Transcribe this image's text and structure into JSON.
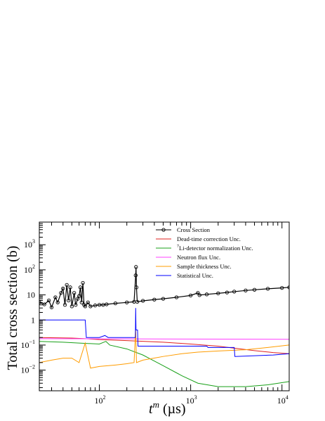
{
  "chart_data": {
    "type": "line",
    "xlabel_main": "t",
    "xlabel_sup": "m",
    "xlabel_unit": " (µs)",
    "ylabel": "Total cross section (b)",
    "x_scale": "log",
    "y_scale": "log",
    "xlim": [
      22,
      12000
    ],
    "ylim": [
      0.0015,
      8000
    ],
    "x_tick_labels": [
      {
        "value": 100,
        "base": "10",
        "exp": "2"
      },
      {
        "value": 1000,
        "base": "10",
        "exp": "3"
      },
      {
        "value": 10000,
        "base": "10",
        "exp": "4"
      }
    ],
    "y_tick_labels": [
      {
        "value": 0.01,
        "base": "10",
        "exp": "−2"
      },
      {
        "value": 0.1,
        "base": "10",
        "exp": "−1"
      },
      {
        "value": 1,
        "base": "1",
        "exp": ""
      },
      {
        "value": 10,
        "base": "10",
        "exp": ""
      },
      {
        "value": 100,
        "base": "10",
        "exp": "2"
      },
      {
        "value": 1000,
        "base": "10",
        "exp": "3"
      }
    ],
    "grid": false,
    "legend_position": "top-right",
    "series": [
      {
        "name": "Cross Section",
        "color": "#000000",
        "style": "markers",
        "points": [
          [
            22,
            5.0
          ],
          [
            25,
            4.2
          ],
          [
            28,
            6.0
          ],
          [
            30,
            3.2
          ],
          [
            33,
            8.0
          ],
          [
            35,
            5.0
          ],
          [
            38,
            12.0
          ],
          [
            40,
            18.0
          ],
          [
            42,
            4.0
          ],
          [
            44,
            25.0
          ],
          [
            46,
            6.0
          ],
          [
            48,
            20.0
          ],
          [
            50,
            3.5
          ],
          [
            53,
            12.0
          ],
          [
            55,
            4.0
          ],
          [
            58,
            7.0
          ],
          [
            60,
            9.0
          ],
          [
            62,
            20.0
          ],
          [
            64,
            5.0
          ],
          [
            66,
            30.0
          ],
          [
            68,
            4.0
          ],
          [
            70,
            3.5
          ],
          [
            75,
            5.0
          ],
          [
            80,
            3.5
          ],
          [
            90,
            3.8
          ],
          [
            100,
            4.0
          ],
          [
            110,
            4.0
          ],
          [
            120,
            4.2
          ],
          [
            150,
            4.6
          ],
          [
            200,
            5.0
          ],
          [
            240,
            5.3
          ],
          [
            250,
            60.0
          ],
          [
            252,
            130.0
          ],
          [
            255,
            20.0
          ],
          [
            260,
            5.3
          ],
          [
            300,
            5.8
          ],
          [
            400,
            6.5
          ],
          [
            500,
            7.0
          ],
          [
            700,
            8.0
          ],
          [
            1000,
            9.5
          ],
          [
            1200,
            12.0
          ],
          [
            1250,
            9.8
          ],
          [
            1500,
            10.5
          ],
          [
            2000,
            11.5
          ],
          [
            2500,
            12.5
          ],
          [
            3000,
            13.5
          ],
          [
            4000,
            15.0
          ],
          [
            5000,
            16.0
          ],
          [
            7000,
            17.5
          ],
          [
            10000,
            19.0
          ],
          [
            12000,
            20.0
          ]
        ]
      },
      {
        "name": "Dead-time correction Unc.",
        "color": "#e0201f",
        "style": "line",
        "points": [
          [
            22,
            0.2
          ],
          [
            50,
            0.19
          ],
          [
            70,
            0.18
          ],
          [
            100,
            0.165
          ],
          [
            200,
            0.15
          ],
          [
            500,
            0.13
          ],
          [
            1000,
            0.11
          ],
          [
            2000,
            0.09
          ],
          [
            3000,
            0.075
          ],
          [
            5000,
            0.06
          ],
          [
            8000,
            0.05
          ],
          [
            12000,
            0.045
          ]
        ]
      },
      {
        "name": "Li-detector normalization Unc.",
        "name_prefix_sup": "7",
        "color": "#18a018",
        "style": "line",
        "points": [
          [
            22,
            0.14
          ],
          [
            40,
            0.13
          ],
          [
            60,
            0.12
          ],
          [
            100,
            0.11
          ],
          [
            118,
            0.14
          ],
          [
            130,
            0.1
          ],
          [
            200,
            0.07
          ],
          [
            300,
            0.04
          ],
          [
            500,
            0.015
          ],
          [
            800,
            0.006
          ],
          [
            1200,
            0.003
          ],
          [
            2000,
            0.0022
          ],
          [
            4000,
            0.0022
          ],
          [
            7000,
            0.0026
          ],
          [
            12000,
            0.0035
          ]
        ]
      },
      {
        "name": "Neutron flux Unc.",
        "color": "#ff40ff",
        "style": "line",
        "points": [
          [
            22,
            0.18
          ],
          [
            12000,
            0.17
          ]
        ]
      },
      {
        "name": "Sample thickness Unc.",
        "color": "#ff9c00",
        "style": "line",
        "points": [
          [
            22,
            0.02
          ],
          [
            30,
            0.025
          ],
          [
            40,
            0.03
          ],
          [
            50,
            0.03
          ],
          [
            60,
            0.02
          ],
          [
            70,
            0.12
          ],
          [
            80,
            0.012
          ],
          [
            100,
            0.014
          ],
          [
            150,
            0.016
          ],
          [
            200,
            0.018
          ],
          [
            240,
            0.02
          ],
          [
            250,
            0.5
          ],
          [
            255,
            0.02
          ],
          [
            300,
            0.025
          ],
          [
            500,
            0.035
          ],
          [
            800,
            0.045
          ],
          [
            1200,
            0.052
          ],
          [
            2000,
            0.058
          ],
          [
            4000,
            0.065
          ],
          [
            7000,
            0.08
          ],
          [
            12000,
            0.1
          ]
        ]
      },
      {
        "name": "Statistical Unc.",
        "color": "#0000ff",
        "style": "line",
        "points": [
          [
            22,
            1.0
          ],
          [
            60,
            1.0
          ],
          [
            70,
            1.0
          ],
          [
            72,
            0.2
          ],
          [
            100,
            0.2
          ],
          [
            115,
            0.24
          ],
          [
            125,
            0.2
          ],
          [
            248,
            0.2
          ],
          [
            250,
            3.0
          ],
          [
            252,
            0.4
          ],
          [
            262,
            0.4
          ],
          [
            265,
            0.09
          ],
          [
            1500,
            0.09
          ],
          [
            1550,
            0.08
          ],
          [
            3000,
            0.08
          ],
          [
            3050,
            0.035
          ],
          [
            8000,
            0.04
          ],
          [
            12000,
            0.045
          ]
        ]
      }
    ]
  }
}
